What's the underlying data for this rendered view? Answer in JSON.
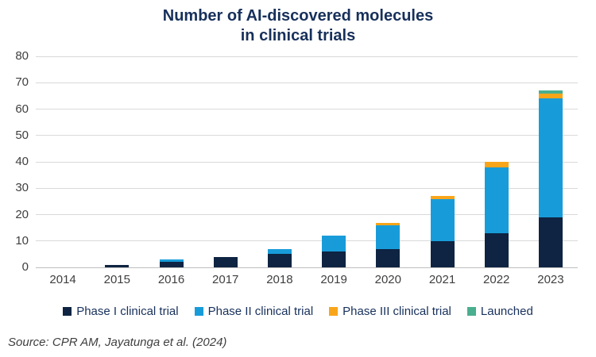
{
  "title": "Number of AI-discovered molecules\nin clinical trials",
  "source": "Source: CPR AM, Jayatunga et al. (2024)",
  "colors": {
    "phase1": "#0e2442",
    "phase2": "#189cd9",
    "phase3": "#f9a51a",
    "launched": "#4aaf8f",
    "title_text": "#17305b",
    "legend_text": "#17305b",
    "axis_text": "#3f3f3f",
    "gridline": "#d9d9d9"
  },
  "chart_data": {
    "type": "bar",
    "stacked": true,
    "title": "Number of AI-discovered molecules in clinical trials",
    "xlabel": "",
    "ylabel": "",
    "categories": [
      "2014",
      "2015",
      "2016",
      "2017",
      "2018",
      "2019",
      "2020",
      "2021",
      "2022",
      "2023"
    ],
    "series": [
      {
        "name": "Phase I clinical trial",
        "color_key": "phase1",
        "values": [
          0,
          1,
          2,
          4,
          5,
          6,
          7,
          10,
          13,
          19
        ]
      },
      {
        "name": "Phase II clinical trial",
        "color_key": "phase2",
        "values": [
          0,
          0,
          1,
          0,
          2,
          6,
          9,
          16,
          25,
          45
        ]
      },
      {
        "name": "Phase III clinical trial",
        "color_key": "phase3",
        "values": [
          0,
          0,
          0,
          0,
          0,
          0,
          1,
          1,
          2,
          2
        ]
      },
      {
        "name": "Launched",
        "color_key": "launched",
        "values": [
          0,
          0,
          0,
          0,
          0,
          0,
          0,
          0,
          0,
          1
        ]
      }
    ],
    "totals": [
      0,
      1,
      3,
      4,
      7,
      12,
      17,
      27,
      40,
      67
    ],
    "ylim": [
      0,
      80
    ],
    "yticks": [
      0,
      10,
      20,
      30,
      40,
      50,
      60,
      70,
      80
    ],
    "grid": true,
    "legend_position": "bottom"
  }
}
